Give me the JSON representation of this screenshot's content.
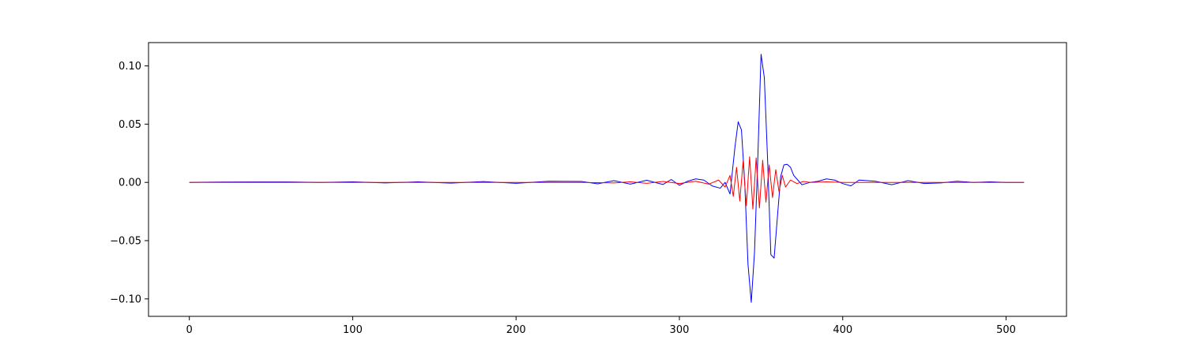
{
  "chart_data": {
    "type": "line",
    "title": "",
    "xlabel": "",
    "ylabel": "",
    "xlim": [
      -25,
      537
    ],
    "ylim": [
      -0.115,
      0.12
    ],
    "xticks": [
      0,
      100,
      200,
      300,
      400,
      500
    ],
    "xtick_labels": [
      "0",
      "100",
      "200",
      "300",
      "400",
      "500"
    ],
    "yticks": [
      -0.1,
      -0.05,
      0.0,
      0.05,
      0.1
    ],
    "ytick_labels": [
      "−0.10",
      "−0.05",
      "0.00",
      "0.05",
      "0.10"
    ],
    "grid": false,
    "legend": "none",
    "series": [
      {
        "color": "#0000ff",
        "x": [
          0,
          20,
          40,
          60,
          80,
          100,
          120,
          140,
          160,
          180,
          200,
          220,
          240,
          250,
          260,
          270,
          280,
          290,
          295,
          300,
          305,
          310,
          315,
          320,
          325,
          328,
          331,
          334,
          336,
          338,
          340,
          342,
          344,
          346,
          348,
          350,
          352,
          354,
          356,
          358,
          360,
          362,
          364,
          366,
          368,
          370,
          375,
          380,
          385,
          390,
          395,
          400,
          405,
          410,
          420,
          430,
          440,
          450,
          460,
          470,
          480,
          490,
          500,
          511
        ],
        "y": [
          0.0,
          0.0003,
          0.0004,
          0.0004,
          0.0,
          0.0005,
          -0.0005,
          0.0005,
          -0.0006,
          0.0007,
          -0.0008,
          0.001,
          0.0008,
          -0.0012,
          0.0015,
          -0.0015,
          0.0018,
          -0.0018,
          0.0025,
          -0.0025,
          0.001,
          0.003,
          0.002,
          -0.003,
          -0.005,
          0.0,
          -0.01,
          0.03,
          0.052,
          0.045,
          0.0,
          -0.07,
          -0.103,
          -0.06,
          0.02,
          0.11,
          0.09,
          0.02,
          -0.062,
          -0.065,
          -0.03,
          0.005,
          0.015,
          0.0155,
          0.013,
          0.006,
          -0.002,
          0.0,
          0.001,
          0.003,
          0.002,
          -0.001,
          -0.003,
          0.002,
          0.001,
          -0.002,
          0.0015,
          -0.001,
          -0.0005,
          0.001,
          0.0,
          0.0005,
          0.0,
          0.0
        ]
      },
      {
        "color": "#ff0000",
        "x": [
          0,
          60,
          120,
          180,
          240,
          260,
          270,
          280,
          290,
          300,
          310,
          318,
          324,
          328,
          331,
          333,
          335,
          337,
          339,
          341,
          343,
          345,
          347,
          349,
          351,
          353,
          355,
          357,
          359,
          361,
          363,
          365,
          368,
          372,
          376,
          380,
          390,
          400,
          420,
          450,
          480,
          511
        ],
        "y": [
          0.0,
          0.0,
          0.0,
          0.0,
          0.0,
          -0.0005,
          0.0005,
          -0.0008,
          0.0008,
          -0.001,
          0.001,
          -0.0015,
          0.002,
          -0.004,
          0.006,
          -0.012,
          0.013,
          -0.016,
          0.018,
          -0.02,
          0.022,
          -0.023,
          0.021,
          -0.022,
          0.019,
          -0.017,
          0.015,
          -0.013,
          0.011,
          -0.008,
          0.006,
          -0.004,
          0.002,
          -0.001,
          0.0008,
          0.0,
          0.0005,
          0.0,
          0.0,
          0.0,
          0.0,
          0.0
        ]
      }
    ]
  }
}
